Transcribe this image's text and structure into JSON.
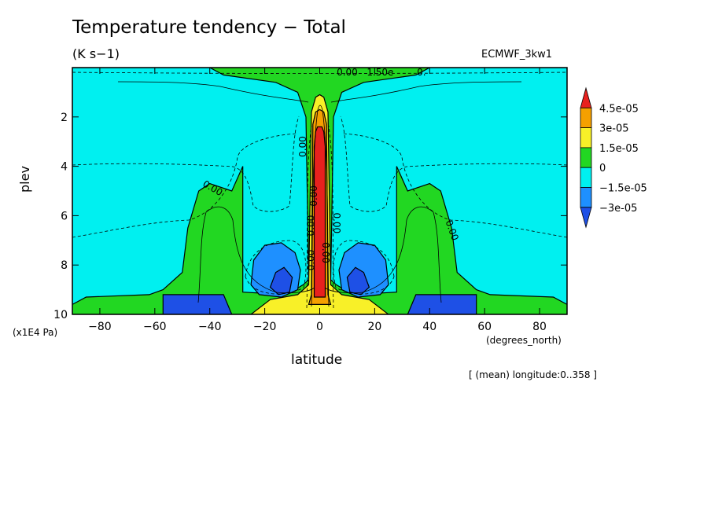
{
  "header": {
    "title": "Temperature tendency − Total",
    "units": "(K s−1)",
    "model": "ECMWF_3kw1"
  },
  "footer": {
    "note": "[ (mean) longitude:0..358 ]"
  },
  "chart_data": {
    "type": "heatmap",
    "title": "Temperature tendency − Total",
    "subtitle": "(K s−1)",
    "xlabel": "latitude",
    "x_units": "(degrees_north)",
    "ylabel": "plev",
    "y_units": "(x1E4 Pa)",
    "xlim": [
      -90,
      90
    ],
    "ylim": [
      10,
      0
    ],
    "x_ticks": [
      -80,
      -60,
      -40,
      -20,
      0,
      20,
      40,
      60,
      80
    ],
    "y_ticks": [
      2,
      4,
      6,
      8,
      10
    ],
    "colorbar": {
      "levels": [
        "4.5e-05",
        "3e-05",
        "1.5e-05",
        "0",
        "−1.5e-05",
        "−3e-05"
      ],
      "colors": [
        "#e8211e",
        "#f5a000",
        "#f8f028",
        "#22d722",
        "#00f0f0",
        "#1e90ff",
        "#1e50e6"
      ]
    },
    "contour_labels": [
      "0.00",
      "0.00",
      "0.00",
      "0.00",
      "0.00",
      "0.00",
      "0.00",
      "0.00",
      "0.00",
      "1.50e",
      "0."
    ],
    "fields": [
      {
        "level": "−1.5e-05",
        "color": "#00f0f0",
        "polygon": [
          [
            -90,
            0
          ],
          [
            90,
            0
          ],
          [
            90,
            10
          ],
          [
            -90,
            10
          ]
        ]
      },
      {
        "level": "0",
        "color": "#22d722",
        "polygon": [
          [
            -40,
            0
          ],
          [
            40,
            0
          ],
          [
            35,
            0.3
          ],
          [
            16,
            0.6
          ],
          [
            8,
            1.0
          ],
          [
            5,
            2.0
          ],
          [
            4,
            8.6
          ],
          [
            6,
            8.8
          ],
          [
            12,
            9.2
          ],
          [
            28,
            9.1
          ],
          [
            28,
            4.0
          ],
          [
            32,
            5.0
          ],
          [
            40,
            4.7
          ],
          [
            44,
            5.0
          ],
          [
            48,
            6.5
          ],
          [
            50,
            8.3
          ],
          [
            57,
            9.0
          ],
          [
            62,
            9.2
          ],
          [
            85,
            9.3
          ],
          [
            90,
            9.6
          ],
          [
            90,
            10
          ],
          [
            -90,
            10
          ],
          [
            -90,
            9.6
          ],
          [
            -85,
            9.3
          ],
          [
            -62,
            9.2
          ],
          [
            -57,
            9.0
          ],
          [
            -50,
            8.3
          ],
          [
            -48,
            6.5
          ],
          [
            -44,
            5.0
          ],
          [
            -40,
            4.7
          ],
          [
            -32,
            5.0
          ],
          [
            -28,
            4.0
          ],
          [
            -28,
            9.1
          ],
          [
            -12,
            9.2
          ],
          [
            -6,
            8.8
          ],
          [
            -4,
            8.6
          ],
          [
            -5,
            2.0
          ],
          [
            -8,
            1.0
          ],
          [
            -16,
            0.6
          ],
          [
            -35,
            0.3
          ]
        ]
      },
      {
        "level": "1.5e-05",
        "color": "#f8f028",
        "polygon": [
          [
            -25,
            10
          ],
          [
            -18,
            9.4
          ],
          [
            -8,
            9.2
          ],
          [
            -4,
            8.8
          ],
          [
            -3,
            1.8
          ],
          [
            -1.5,
            1.2
          ],
          [
            0,
            1.1
          ],
          [
            1.5,
            1.2
          ],
          [
            3,
            1.8
          ],
          [
            4,
            8.8
          ],
          [
            8,
            9.2
          ],
          [
            18,
            9.4
          ],
          [
            25,
            10
          ]
        ]
      },
      {
        "level": "3e-05",
        "color": "#f5a000",
        "polygon": [
          [
            -4,
            9.6
          ],
          [
            -3,
            9.2
          ],
          [
            -2.5,
            2.3
          ],
          [
            -1.5,
            1.8
          ],
          [
            0,
            1.7
          ],
          [
            1.5,
            1.8
          ],
          [
            2.5,
            2.3
          ],
          [
            3,
            9.2
          ],
          [
            4,
            9.6
          ]
        ]
      },
      {
        "level": "4.5e-05",
        "color": "#e8211e",
        "polygon": [
          [
            -2,
            9.3
          ],
          [
            -2,
            3.2
          ],
          [
            -1.5,
            2.6
          ],
          [
            -0.8,
            2.4
          ],
          [
            0.8,
            2.4
          ],
          [
            1.5,
            2.6
          ],
          [
            2,
            3.2
          ],
          [
            2,
            9.3
          ]
        ]
      },
      {
        "level": "−3e-05",
        "color": "#1e90ff",
        "polygon": [
          [
            -25,
            8.8
          ],
          [
            -24,
            7.8
          ],
          [
            -20,
            7.2
          ],
          [
            -14,
            7.1
          ],
          [
            -9,
            7.5
          ],
          [
            -7,
            8.2
          ],
          [
            -8,
            9.0
          ],
          [
            -14,
            9.3
          ],
          [
            -22,
            9.2
          ]
        ]
      },
      {
        "level": "−3e-05",
        "color": "#1e90ff",
        "polygon": [
          [
            25,
            8.8
          ],
          [
            24,
            7.8
          ],
          [
            20,
            7.2
          ],
          [
            14,
            7.1
          ],
          [
            9,
            7.5
          ],
          [
            7,
            8.2
          ],
          [
            8,
            9.0
          ],
          [
            14,
            9.3
          ],
          [
            22,
            9.2
          ]
        ]
      },
      {
        "level": "< −3e-05",
        "color": "#1e50e6",
        "polygon": [
          [
            -18,
            8.9
          ],
          [
            -16,
            8.3
          ],
          [
            -13,
            8.1
          ],
          [
            -10,
            8.5
          ],
          [
            -11,
            9.1
          ],
          [
            -15,
            9.2
          ]
        ]
      },
      {
        "level": "< −3e-05",
        "color": "#1e50e6",
        "polygon": [
          [
            18,
            8.9
          ],
          [
            16,
            8.3
          ],
          [
            13,
            8.1
          ],
          [
            10,
            8.5
          ],
          [
            11,
            9.1
          ],
          [
            15,
            9.2
          ]
        ]
      },
      {
        "level": "< −3e-05",
        "color": "#1e50e6",
        "polygon": [
          [
            -57,
            9.2
          ],
          [
            -35,
            9.2
          ],
          [
            -32,
            10
          ],
          [
            -57,
            10
          ]
        ]
      },
      {
        "level": "< −3e-05",
        "color": "#1e50e6",
        "polygon": [
          [
            35,
            9.2
          ],
          [
            57,
            9.2
          ],
          [
            57,
            10
          ],
          [
            32,
            10
          ]
        ]
      }
    ]
  }
}
